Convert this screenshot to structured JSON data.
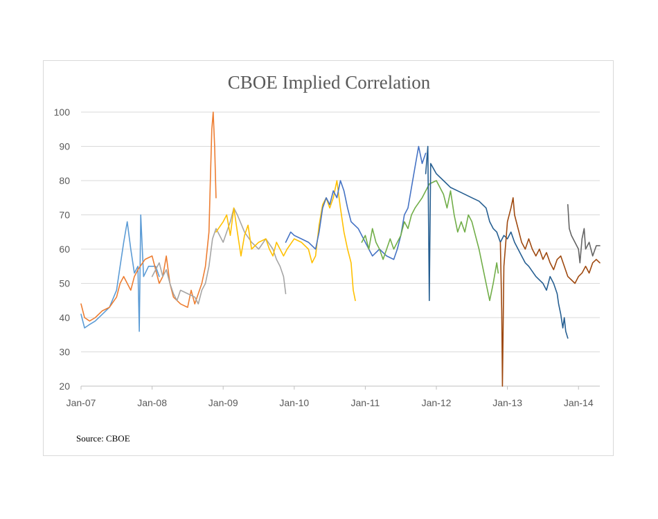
{
  "chart_data": {
    "type": "line",
    "title": "CBOE Implied Correlation",
    "source": "Source: CBOE",
    "xlabel": "",
    "ylabel": "",
    "ylim": [
      20,
      100
    ],
    "yticks": [
      20,
      30,
      40,
      50,
      60,
      70,
      80,
      90,
      100
    ],
    "xlim": [
      2007.0,
      2014.3
    ],
    "xticks": [
      {
        "label": "Jan-07",
        "value": 2007
      },
      {
        "label": "Jan-08",
        "value": 2008
      },
      {
        "label": "Jan-09",
        "value": 2009
      },
      {
        "label": "Jan-10",
        "value": 2010
      },
      {
        "label": "Jan-11",
        "value": 2011
      },
      {
        "label": "Jan-12",
        "value": 2012
      },
      {
        "label": "Jan-13",
        "value": 2013
      },
      {
        "label": "Jan-14",
        "value": 2014
      }
    ],
    "grid": true,
    "legend": "none",
    "series": [
      {
        "color": "#5b9bd5",
        "points": [
          [
            2007.0,
            41
          ],
          [
            2007.05,
            37
          ],
          [
            2007.12,
            38
          ],
          [
            2007.2,
            39
          ],
          [
            2007.3,
            41
          ],
          [
            2007.4,
            43
          ],
          [
            2007.5,
            48
          ],
          [
            2007.55,
            55
          ],
          [
            2007.6,
            62
          ],
          [
            2007.65,
            68
          ],
          [
            2007.7,
            60
          ],
          [
            2007.75,
            53
          ],
          [
            2007.8,
            55
          ],
          [
            2007.82,
            36
          ],
          [
            2007.84,
            70
          ],
          [
            2007.88,
            52
          ],
          [
            2007.95,
            55
          ],
          [
            2008.05,
            55
          ],
          [
            2008.1,
            52
          ]
        ]
      },
      {
        "color": "#ed7d31",
        "points": [
          [
            2007.0,
            44
          ],
          [
            2007.05,
            40
          ],
          [
            2007.12,
            39
          ],
          [
            2007.2,
            40
          ],
          [
            2007.3,
            42
          ],
          [
            2007.4,
            43
          ],
          [
            2007.5,
            46
          ],
          [
            2007.55,
            50
          ],
          [
            2007.6,
            52
          ],
          [
            2007.65,
            50
          ],
          [
            2007.7,
            48
          ],
          [
            2007.75,
            52
          ],
          [
            2007.8,
            54
          ],
          [
            2007.9,
            57
          ],
          [
            2008.0,
            58
          ],
          [
            2008.05,
            54
          ],
          [
            2008.1,
            50
          ],
          [
            2008.15,
            52
          ],
          [
            2008.2,
            58
          ],
          [
            2008.25,
            50
          ],
          [
            2008.3,
            46
          ],
          [
            2008.4,
            44
          ],
          [
            2008.5,
            43
          ],
          [
            2008.55,
            48
          ],
          [
            2008.6,
            44
          ],
          [
            2008.65,
            47
          ],
          [
            2008.7,
            50
          ],
          [
            2008.75,
            55
          ],
          [
            2008.8,
            65
          ],
          [
            2008.82,
            80
          ],
          [
            2008.84,
            95
          ],
          [
            2008.86,
            100
          ],
          [
            2008.88,
            90
          ],
          [
            2008.9,
            75
          ]
        ]
      },
      {
        "color": "#a5a5a5",
        "points": [
          [
            2008.0,
            52
          ],
          [
            2008.05,
            54
          ],
          [
            2008.1,
            56
          ],
          [
            2008.15,
            52
          ],
          [
            2008.2,
            54
          ],
          [
            2008.25,
            50
          ],
          [
            2008.3,
            47
          ],
          [
            2008.35,
            45
          ],
          [
            2008.4,
            48
          ],
          [
            2008.5,
            47
          ],
          [
            2008.6,
            46
          ],
          [
            2008.65,
            44
          ],
          [
            2008.7,
            48
          ],
          [
            2008.75,
            50
          ],
          [
            2008.8,
            55
          ],
          [
            2008.85,
            63
          ],
          [
            2008.9,
            66
          ],
          [
            2009.0,
            62
          ],
          [
            2009.05,
            65
          ],
          [
            2009.1,
            68
          ],
          [
            2009.15,
            72
          ],
          [
            2009.2,
            70
          ],
          [
            2009.3,
            65
          ],
          [
            2009.4,
            62
          ],
          [
            2009.5,
            60
          ],
          [
            2009.6,
            63
          ],
          [
            2009.7,
            60
          ],
          [
            2009.75,
            57
          ],
          [
            2009.8,
            55
          ],
          [
            2009.85,
            52
          ],
          [
            2009.88,
            47
          ]
        ]
      },
      {
        "color": "#ffc000",
        "points": [
          [
            2008.9,
            65
          ],
          [
            2009.0,
            68
          ],
          [
            2009.05,
            70
          ],
          [
            2009.1,
            64
          ],
          [
            2009.15,
            72
          ],
          [
            2009.2,
            65
          ],
          [
            2009.25,
            58
          ],
          [
            2009.3,
            64
          ],
          [
            2009.35,
            67
          ],
          [
            2009.4,
            60
          ],
          [
            2009.5,
            62
          ],
          [
            2009.6,
            63
          ],
          [
            2009.65,
            60
          ],
          [
            2009.7,
            58
          ],
          [
            2009.75,
            62
          ],
          [
            2009.8,
            60
          ],
          [
            2009.85,
            58
          ],
          [
            2009.9,
            60
          ],
          [
            2010.0,
            63
          ],
          [
            2010.1,
            62
          ],
          [
            2010.2,
            60
          ],
          [
            2010.25,
            56
          ],
          [
            2010.3,
            58
          ],
          [
            2010.35,
            67
          ],
          [
            2010.4,
            73
          ],
          [
            2010.45,
            75
          ],
          [
            2010.5,
            72
          ],
          [
            2010.55,
            75
          ],
          [
            2010.6,
            80
          ],
          [
            2010.65,
            72
          ],
          [
            2010.7,
            65
          ],
          [
            2010.75,
            60
          ],
          [
            2010.8,
            56
          ],
          [
            2010.83,
            48
          ],
          [
            2010.86,
            45
          ]
        ]
      },
      {
        "color": "#4472c4",
        "points": [
          [
            2009.88,
            62
          ],
          [
            2009.95,
            65
          ],
          [
            2010.0,
            64
          ],
          [
            2010.1,
            63
          ],
          [
            2010.2,
            62
          ],
          [
            2010.3,
            60
          ],
          [
            2010.35,
            65
          ],
          [
            2010.4,
            72
          ],
          [
            2010.45,
            75
          ],
          [
            2010.5,
            73
          ],
          [
            2010.55,
            77
          ],
          [
            2010.6,
            75
          ],
          [
            2010.65,
            80
          ],
          [
            2010.7,
            77
          ],
          [
            2010.75,
            72
          ],
          [
            2010.8,
            68
          ],
          [
            2010.9,
            66
          ],
          [
            2011.0,
            62
          ],
          [
            2011.05,
            60
          ],
          [
            2011.1,
            58
          ],
          [
            2011.2,
            60
          ],
          [
            2011.3,
            58
          ],
          [
            2011.4,
            57
          ],
          [
            2011.45,
            60
          ],
          [
            2011.5,
            64
          ],
          [
            2011.55,
            70
          ],
          [
            2011.6,
            72
          ],
          [
            2011.65,
            78
          ],
          [
            2011.7,
            84
          ],
          [
            2011.75,
            90
          ],
          [
            2011.8,
            85
          ],
          [
            2011.85,
            88
          ]
        ]
      },
      {
        "color": "#70ad47",
        "points": [
          [
            2010.95,
            62
          ],
          [
            2011.0,
            64
          ],
          [
            2011.05,
            60
          ],
          [
            2011.1,
            66
          ],
          [
            2011.15,
            62
          ],
          [
            2011.2,
            60
          ],
          [
            2011.25,
            57
          ],
          [
            2011.3,
            60
          ],
          [
            2011.35,
            63
          ],
          [
            2011.4,
            60
          ],
          [
            2011.45,
            62
          ],
          [
            2011.5,
            64
          ],
          [
            2011.55,
            68
          ],
          [
            2011.6,
            66
          ],
          [
            2011.65,
            70
          ],
          [
            2011.7,
            72
          ],
          [
            2011.8,
            75
          ],
          [
            2011.9,
            79
          ],
          [
            2012.0,
            80
          ],
          [
            2012.1,
            76
          ],
          [
            2012.15,
            72
          ],
          [
            2012.2,
            77
          ],
          [
            2012.25,
            70
          ],
          [
            2012.3,
            65
          ],
          [
            2012.35,
            68
          ],
          [
            2012.4,
            65
          ],
          [
            2012.45,
            70
          ],
          [
            2012.5,
            68
          ],
          [
            2012.55,
            64
          ],
          [
            2012.6,
            60
          ],
          [
            2012.65,
            55
          ],
          [
            2012.7,
            50
          ],
          [
            2012.75,
            45
          ],
          [
            2012.8,
            50
          ],
          [
            2012.85,
            56
          ],
          [
            2012.87,
            53
          ]
        ]
      },
      {
        "color": "#255e91",
        "points": [
          [
            2011.85,
            82
          ],
          [
            2011.88,
            90
          ],
          [
            2011.9,
            45
          ],
          [
            2011.92,
            85
          ],
          [
            2012.0,
            82
          ],
          [
            2012.1,
            80
          ],
          [
            2012.2,
            78
          ],
          [
            2012.3,
            77
          ],
          [
            2012.4,
            76
          ],
          [
            2012.5,
            75
          ],
          [
            2012.6,
            74
          ],
          [
            2012.7,
            72
          ],
          [
            2012.75,
            68
          ],
          [
            2012.8,
            66
          ],
          [
            2012.85,
            65
          ],
          [
            2012.9,
            62
          ],
          [
            2012.95,
            64
          ],
          [
            2013.0,
            63
          ],
          [
            2013.05,
            65
          ],
          [
            2013.1,
            62
          ],
          [
            2013.15,
            60
          ],
          [
            2013.2,
            58
          ],
          [
            2013.25,
            56
          ],
          [
            2013.3,
            55
          ],
          [
            2013.4,
            52
          ],
          [
            2013.5,
            50
          ],
          [
            2013.55,
            48
          ],
          [
            2013.6,
            52
          ],
          [
            2013.65,
            50
          ],
          [
            2013.7,
            47
          ],
          [
            2013.72,
            44
          ],
          [
            2013.75,
            41
          ],
          [
            2013.78,
            37
          ],
          [
            2013.8,
            40
          ],
          [
            2013.82,
            36
          ],
          [
            2013.85,
            34
          ]
        ]
      },
      {
        "color": "#9e480e",
        "points": [
          [
            2012.9,
            62
          ],
          [
            2012.92,
            42
          ],
          [
            2012.93,
            20
          ],
          [
            2012.95,
            55
          ],
          [
            2013.0,
            68
          ],
          [
            2013.05,
            72
          ],
          [
            2013.08,
            75
          ],
          [
            2013.1,
            70
          ],
          [
            2013.15,
            66
          ],
          [
            2013.2,
            62
          ],
          [
            2013.25,
            60
          ],
          [
            2013.3,
            63
          ],
          [
            2013.35,
            60
          ],
          [
            2013.4,
            58
          ],
          [
            2013.45,
            60
          ],
          [
            2013.5,
            57
          ],
          [
            2013.55,
            59
          ],
          [
            2013.6,
            56
          ],
          [
            2013.65,
            54
          ],
          [
            2013.7,
            57
          ],
          [
            2013.75,
            58
          ],
          [
            2013.8,
            55
          ],
          [
            2013.85,
            52
          ],
          [
            2013.9,
            51
          ],
          [
            2013.95,
            50
          ],
          [
            2014.0,
            52
          ],
          [
            2014.05,
            53
          ],
          [
            2014.1,
            55
          ],
          [
            2014.15,
            53
          ],
          [
            2014.2,
            56
          ],
          [
            2014.25,
            57
          ],
          [
            2014.3,
            56
          ]
        ]
      },
      {
        "color": "#636363",
        "points": [
          [
            2013.85,
            73
          ],
          [
            2013.87,
            66
          ],
          [
            2013.9,
            64
          ],
          [
            2013.95,
            62
          ],
          [
            2014.0,
            60
          ],
          [
            2014.02,
            56
          ],
          [
            2014.05,
            63
          ],
          [
            2014.08,
            66
          ],
          [
            2014.1,
            60
          ],
          [
            2014.15,
            62
          ],
          [
            2014.2,
            58
          ],
          [
            2014.25,
            61
          ],
          [
            2014.3,
            61
          ]
        ]
      }
    ]
  }
}
